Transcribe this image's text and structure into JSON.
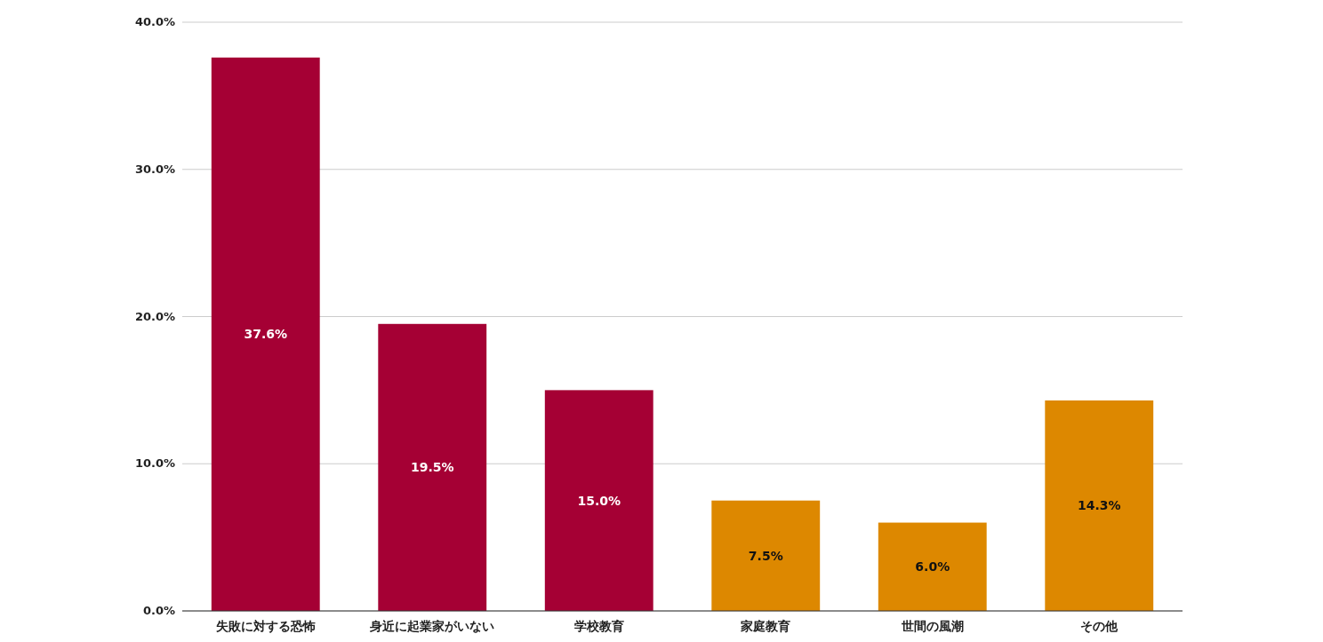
{
  "chart_data": {
    "type": "bar",
    "categories": [
      "失敗に対する恐怖",
      "身近に起業家がいない",
      "学校教育",
      "家庭教育",
      "世間の風潮",
      "その他"
    ],
    "values": [
      37.6,
      19.5,
      15.0,
      7.5,
      6.0,
      14.3
    ],
    "colors": [
      "#a50034",
      "#a50034",
      "#a50034",
      "#dd8800",
      "#dd8800",
      "#dd8800"
    ],
    "value_labels": [
      "37.6%",
      "19.5%",
      "15.0%",
      "7.5%",
      "6.0%",
      "14.3%"
    ],
    "ylim": [
      0,
      40
    ],
    "yticks": [
      {
        "value": 0,
        "label": "0.0%"
      },
      {
        "value": 10,
        "label": "10.0%"
      },
      {
        "value": 20,
        "label": "20.0%"
      },
      {
        "value": 30,
        "label": "30.0%"
      },
      {
        "value": 40,
        "label": "40.0%"
      }
    ],
    "grid": "y"
  }
}
